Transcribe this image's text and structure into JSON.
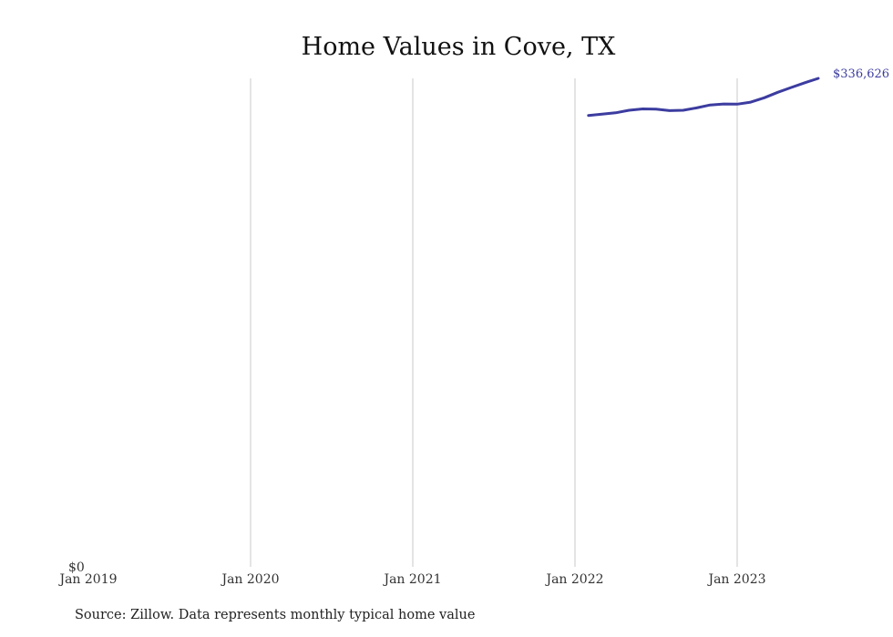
{
  "chart_data": {
    "type": "line",
    "title": "Home Values in Cove, TX",
    "xlabel": "",
    "ylabel": "",
    "x_ticks": [
      "Jan 2019",
      "Jan 2020",
      "Jan 2021",
      "Jan 2022",
      "Jan 2023"
    ],
    "y_ticks": [
      "$0"
    ],
    "xlim": [
      "2019-01",
      "2023-08"
    ],
    "ylim": [
      0,
      336626
    ],
    "grid": "vertical",
    "end_label": "$336,626",
    "line_color": "#3c3ca0",
    "series": [
      {
        "x": [
          "2022-02",
          "2022-03",
          "2022-04",
          "2022-05",
          "2022-06",
          "2022-07",
          "2022-08",
          "2022-09",
          "2022-10",
          "2022-11",
          "2022-12",
          "2023-01",
          "2023-02",
          "2023-03",
          "2023-04",
          "2023-05",
          "2023-06",
          "2023-07"
        ],
        "values": [
          311000,
          311900,
          312800,
          314600,
          315500,
          315300,
          314300,
          314600,
          316200,
          318200,
          318900,
          318800,
          320200,
          323200,
          327000,
          330300,
          333600,
          336626
        ]
      }
    ]
  },
  "source": "Source: Zillow. Data represents monthly typical home value"
}
